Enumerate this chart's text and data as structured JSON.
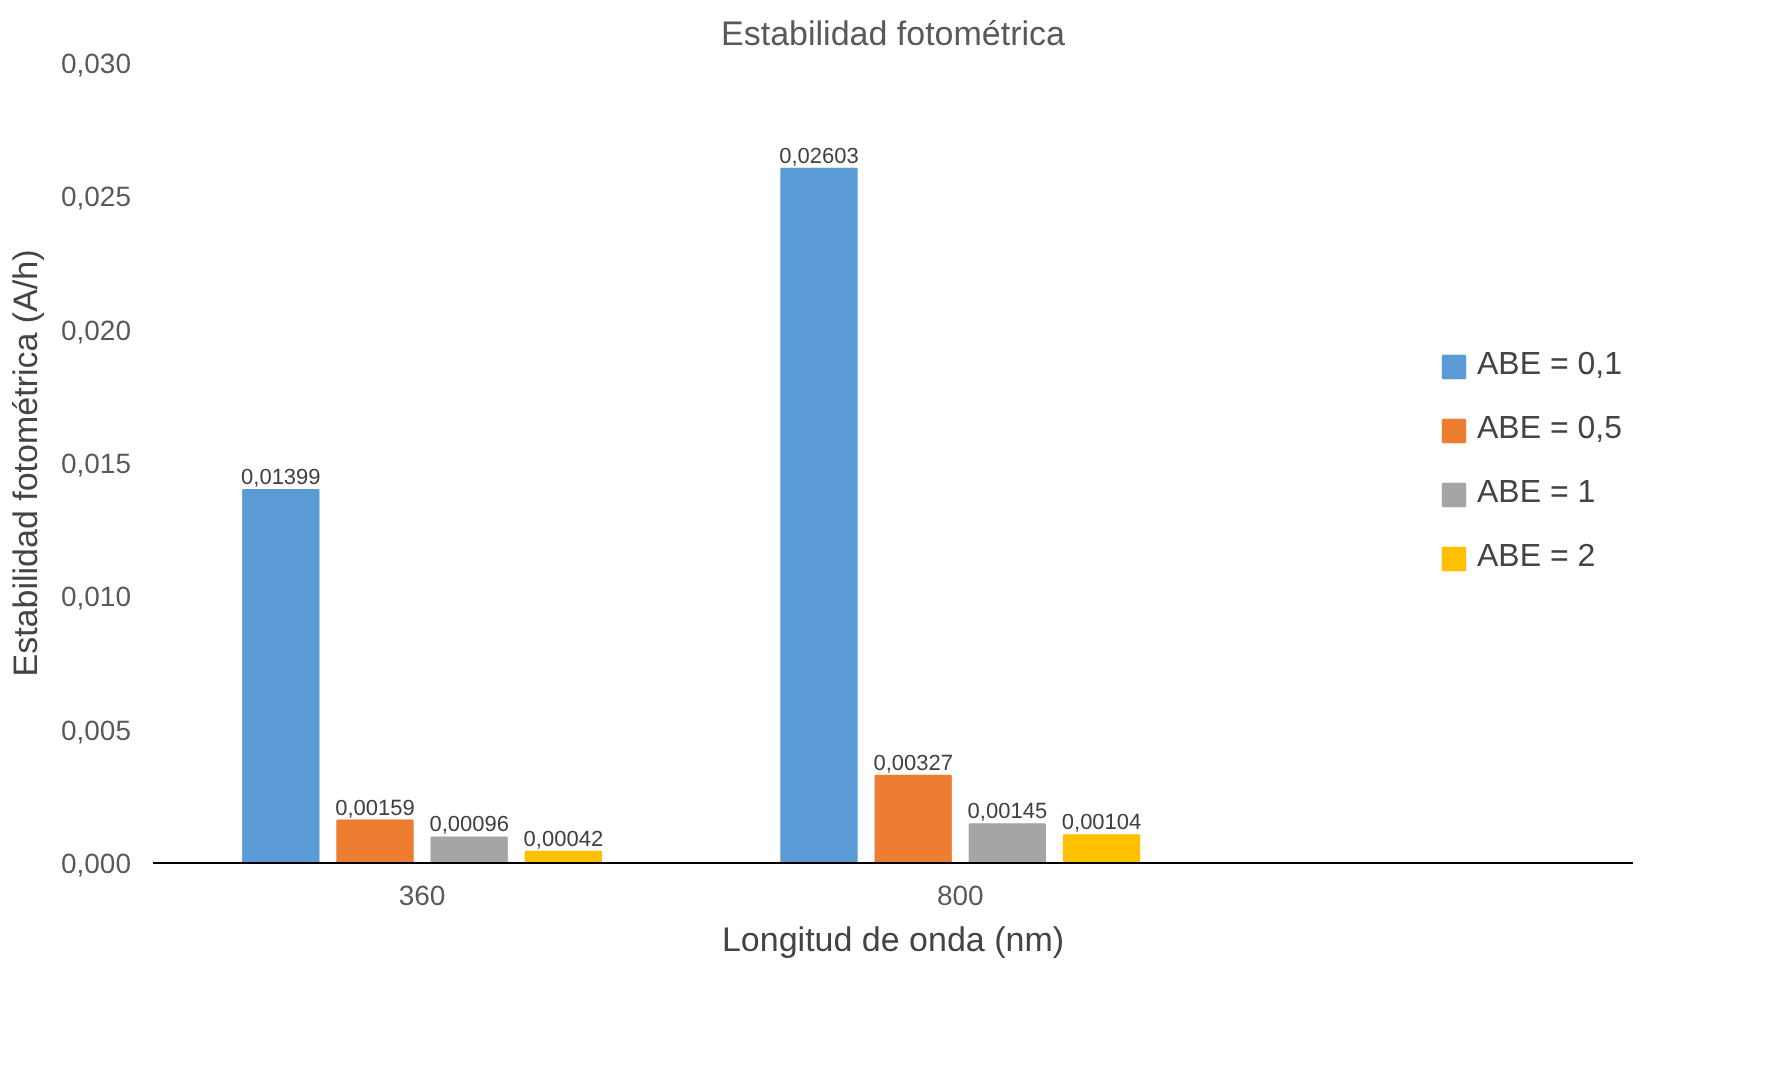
{
  "chart_data": {
    "type": "bar",
    "title": "Estabilidad fotométrica",
    "xlabel": "Longitud de onda (nm)",
    "ylabel": "Estabilidad fotométrica (A/h)",
    "categories": [
      "360",
      "800"
    ],
    "series": [
      {
        "name": "ABE = 0,1",
        "color": "#5b9bd5",
        "values": [
          0.01399,
          0.02603
        ],
        "value_labels": [
          "0,01399",
          "0,02603"
        ]
      },
      {
        "name": "ABE = 0,5",
        "color": "#ed7d31",
        "values": [
          0.00159,
          0.00327
        ],
        "value_labels": [
          "0,00159",
          "0,00327"
        ]
      },
      {
        "name": "ABE = 1",
        "color": "#a5a5a5",
        "values": [
          0.00096,
          0.00145
        ],
        "value_labels": [
          "0,00096",
          "0,00145"
        ]
      },
      {
        "name": "ABE = 2",
        "color": "#ffc000",
        "values": [
          0.00042,
          0.00104
        ],
        "value_labels": [
          "0,00042",
          "0,00104"
        ]
      }
    ],
    "ylim": [
      0,
      0.03
    ],
    "yticks": [
      {
        "value": 0,
        "label": "0,000"
      },
      {
        "value": 0.005,
        "label": "0,005"
      },
      {
        "value": 0.01,
        "label": "0,010"
      },
      {
        "value": 0.015,
        "label": "0,015"
      },
      {
        "value": 0.02,
        "label": "0,020"
      },
      {
        "value": 0.025,
        "label": "0,025"
      },
      {
        "value": 0.03,
        "label": "0,030"
      }
    ],
    "grid": false,
    "legend": "right"
  }
}
